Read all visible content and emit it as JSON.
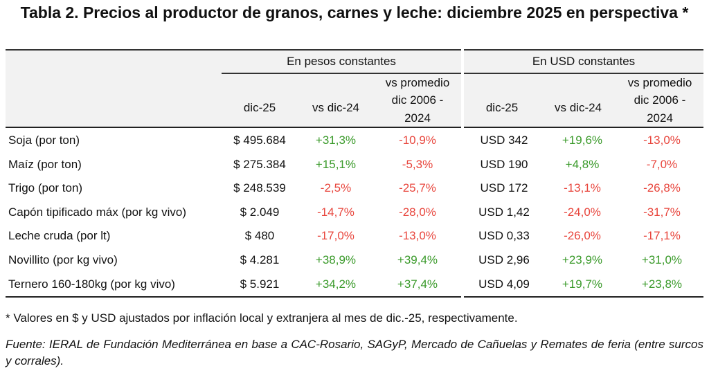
{
  "title": "Tabla 2. Precios al productor de granos, carnes y leche: diciembre 2025 en perspectiva *",
  "groups": [
    "En pesos constantes",
    "En USD constantes"
  ],
  "columns": {
    "c1": "dic-25",
    "c2": "vs dic-24",
    "c3a": "vs promedio",
    "c3b": "dic 2006 -",
    "c3c": "2024"
  },
  "rows": [
    {
      "label": "Soja (por ton)",
      "ars": "$ 495.684",
      "ars_yoy": "+31,3%",
      "ars_avg": "-10,9%",
      "usd": "USD 342",
      "usd_yoy": "+19,6%",
      "usd_avg": "-13,0%"
    },
    {
      "label": "Maíz (por ton)",
      "ars": "$ 275.384",
      "ars_yoy": "+15,1%",
      "ars_avg": "-5,3%",
      "usd": "USD 190",
      "usd_yoy": "+4,8%",
      "usd_avg": "-7,0%"
    },
    {
      "label": "Trigo (por ton)",
      "ars": "$ 248.539",
      "ars_yoy": "-2,5%",
      "ars_avg": "-25,7%",
      "usd": "USD 172",
      "usd_yoy": "-13,1%",
      "usd_avg": "-26,8%"
    },
    {
      "label": "Capón tipificado máx (por kg vivo)",
      "ars": "$ 2.049",
      "ars_yoy": "-14,7%",
      "ars_avg": "-28,0%",
      "usd": "USD 1,42",
      "usd_yoy": "-24,0%",
      "usd_avg": "-31,7%"
    },
    {
      "label": "Leche cruda (por lt)",
      "ars": "$ 480",
      "ars_yoy": "-17,0%",
      "ars_avg": "-13,0%",
      "usd": "USD 0,33",
      "usd_yoy": "-26,0%",
      "usd_avg": "-17,1%"
    },
    {
      "label": "Novillito (por kg vivo)",
      "ars": "$ 4.281",
      "ars_yoy": "+38,9%",
      "ars_avg": "+39,4%",
      "usd": "USD 2,96",
      "usd_yoy": "+23,9%",
      "usd_avg": "+31,0%"
    },
    {
      "label": "Ternero 160-180kg (por kg vivo)",
      "ars": "$ 5.921",
      "ars_yoy": "+34,2%",
      "ars_avg": "+37,4%",
      "usd": "USD 4,09",
      "usd_yoy": "+19,7%",
      "usd_avg": "+23,8%"
    }
  ],
  "footnote": "* Valores en $ y USD ajustados por inflación local y extranjera al mes de dic.-25, respectivamente.",
  "source": "Fuente: IERAL de Fundación Mediterránea en base a CAC-Rosario, SAGyP, Mercado de Cañuelas y Remates de feria (entre surcos y corrales).",
  "colors": {
    "positive": "#3a9a2a",
    "negative": "#e8453c",
    "header_bg": "#f2f2f2"
  }
}
